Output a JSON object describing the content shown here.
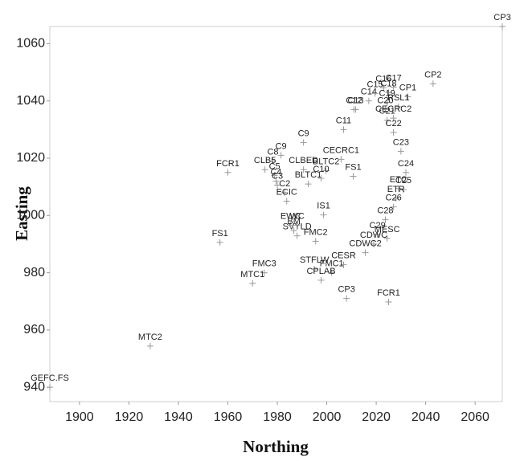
{
  "chart_data": {
    "type": "scatter",
    "xlabel": "Northing",
    "ylabel": "Easting",
    "xlim": [
      1888,
      2071
    ],
    "ylim": [
      935,
      1066
    ],
    "xticks": [
      1900,
      1920,
      1940,
      1960,
      1980,
      2000,
      2020,
      2040,
      2060
    ],
    "yticks": [
      940,
      960,
      980,
      1000,
      1020,
      1040,
      1060
    ],
    "series": [
      {
        "color": "#999999",
        "labels": [
          "CP3",
          "CP2",
          "FCR1",
          "CLBED",
          "C9",
          "C9",
          "C8",
          "CLB5",
          "C5",
          "C4",
          "C3",
          "C2",
          "ECIC",
          "BLTC2",
          "BLTC1",
          "C10",
          "CECRC1",
          "FS1",
          "C11",
          "C13",
          "C12",
          "C14",
          "C15",
          "C16",
          "C17",
          "C18",
          "CP1",
          "C19",
          "RSL1",
          "C20",
          "CECRC2",
          "C21",
          "C22",
          "C23",
          "C24",
          "ETC",
          "C25",
          "ETR",
          "C26",
          "C28",
          "C29",
          "MESC",
          "CDWC",
          "CDWC2",
          "CESR",
          "FMC1",
          "STFLW",
          "CPLAB",
          "CP3",
          "FCR1",
          "FMC2",
          "SVYLD",
          "EWC",
          "WC",
          "BM",
          "IS1",
          "FS1",
          "FMC3",
          "MTC1",
          "MTC2",
          "GEFC.FS"
        ],
        "x": [
          2071,
          2043,
          1960,
          1990.6,
          1990.6,
          1981.5,
          1978.2,
          1975,
          1978.9,
          1979.5,
          1980,
          1983,
          1983.8,
          1999.7,
          1992.5,
          1997.7,
          2005.8,
          2010.7,
          2006.8,
          2011.7,
          2011,
          2017,
          2019.5,
          2023,
          2027,
          2025,
          2032.8,
          2024.4,
          2029,
          2023.7,
          2027,
          2024.4,
          2027,
          2030,
          2032,
          2029,
          2031,
          2028,
          2027,
          2023.7,
          2020.5,
          2024.4,
          2019,
          2015.6,
          2006.8,
          2002,
          1995,
          1997.7,
          2008,
          2025,
          1995.5,
          1988,
          1985.4,
          1988,
          1986.7,
          1998.7,
          1956.8,
          1974.7,
          1970,
          1928.6,
          1888
        ],
        "values": [
          1066,
          1046,
          1015,
          1016,
          1025.5,
          1021,
          1019,
          1016,
          1014,
          1012,
          1010.6,
          1008,
          1005,
          1015.6,
          1011,
          1013,
          1019.6,
          1013.7,
          1030,
          1037,
          1037,
          1040,
          1042.6,
          1044.6,
          1044.8,
          1042.9,
          1041.5,
          1039.5,
          1038,
          1037,
          1034,
          1033.3,
          1029,
          1022.4,
          1015,
          1009.4,
          1009,
          1006,
          1003,
          998.5,
          993.4,
          992,
          990,
          987,
          982.8,
          980,
          981.3,
          977.4,
          971,
          969.8,
          991,
          992.9,
          996.6,
          996.6,
          994.7,
          1000.2,
          990.6,
          980,
          976.3,
          954.4,
          940
        ]
      }
    ]
  }
}
